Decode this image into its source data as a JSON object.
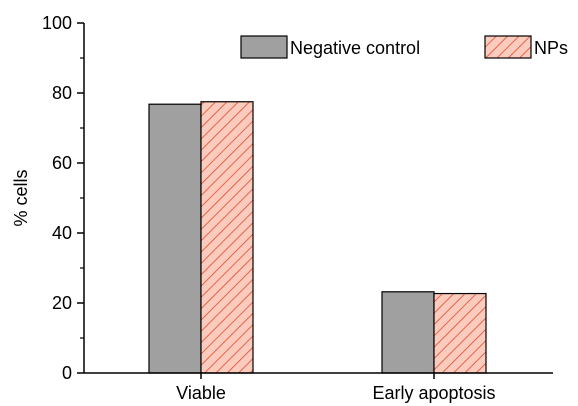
{
  "chart_data": {
    "type": "bar",
    "title": "",
    "xlabel": "",
    "ylabel": "% cells",
    "categories": [
      "Viable",
      "Early apoptosis"
    ],
    "series": [
      {
        "name": "Negative control",
        "values": [
          76.8,
          23.2
        ],
        "color": "#a0a0a0",
        "pattern": "solid"
      },
      {
        "name": "NPs",
        "values": [
          77.5,
          22.7
        ],
        "color": "#fbcbbd",
        "pattern": "diagonal-hatch",
        "hatch_color": "#e04a30"
      }
    ],
    "ylim": [
      0,
      100
    ],
    "yticks": [
      "0",
      "20",
      "40",
      "60",
      "80",
      "100"
    ],
    "grid": false,
    "legend_placement": "top-right"
  }
}
